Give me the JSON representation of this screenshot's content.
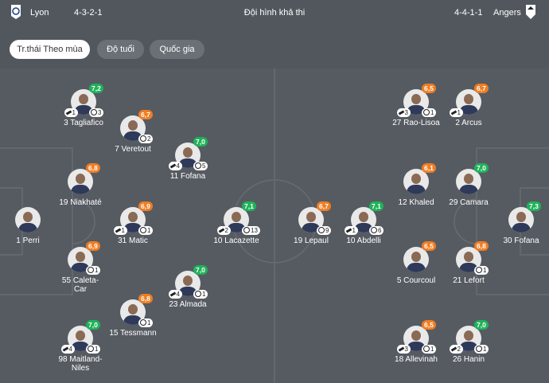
{
  "header": {
    "home_team": "Lyon",
    "home_formation": "4-3-2-1",
    "title": "Đội hình khả thi",
    "away_formation": "4-4-1-1",
    "away_team": "Angers"
  },
  "tabs": [
    "Tr.thái Theo mùa",
    "Độ tuổi",
    "Quốc gia"
  ],
  "players": {
    "home": [
      {
        "name": "3 Tagliafico",
        "rating": "7,2",
        "rating_color": "#1fb25a",
        "assists": 1,
        "goals": 3
      },
      {
        "name": "7 Veretout",
        "rating": "6,7",
        "rating_color": "#f07d22",
        "goals": 2
      },
      {
        "name": "11 Fofana",
        "rating": "7,0",
        "rating_color": "#1fb25a",
        "assists": 4,
        "goals": 5
      },
      {
        "name": "19 Niakhaté",
        "rating": "6,8",
        "rating_color": "#f07d22"
      },
      {
        "name": "1 Perri"
      },
      {
        "name": "31 Matic",
        "rating": "6,9",
        "rating_color": "#f07d22",
        "assists": 1,
        "goals": 1
      },
      {
        "name": "10 Lacazette",
        "rating": "7,1",
        "rating_color": "#1fb25a",
        "assists": 2,
        "goals": 13
      },
      {
        "name": "55 Caleta-Car",
        "rating": "6,9",
        "rating_color": "#f07d22",
        "goals": 1
      },
      {
        "name": "23 Almada",
        "rating": "7,0",
        "rating_color": "#1fb25a",
        "assists": 4,
        "goals": 1
      },
      {
        "name": "15 Tessmann",
        "rating": "6,8",
        "rating_color": "#f07d22",
        "goals": 1
      },
      {
        "name": "98 Maitland-Niles",
        "rating": "7,0",
        "rating_color": "#1fb25a",
        "assists": 4,
        "goals": 1
      }
    ],
    "away": [
      {
        "name": "27 Rao-Lisoa",
        "rating": "6,5",
        "rating_color": "#f07d22",
        "assists": 3,
        "goals": 1
      },
      {
        "name": "2 Arcus",
        "rating": "6,7",
        "rating_color": "#f07d22",
        "assists": 1
      },
      {
        "name": "12 Khaled",
        "rating": "6,1",
        "rating_color": "#f07d22"
      },
      {
        "name": "29 Camara",
        "rating": "7,0",
        "rating_color": "#1fb25a"
      },
      {
        "name": "19 Lepaul",
        "rating": "6,7",
        "rating_color": "#f07d22",
        "goals": 9
      },
      {
        "name": "10 Abdelli",
        "rating": "7,1",
        "rating_color": "#1fb25a",
        "assists": 1,
        "goals": 6
      },
      {
        "name": "30 Fofana",
        "rating": "7,3",
        "rating_color": "#1fb25a"
      },
      {
        "name": "5 Courcoul",
        "rating": "6,5",
        "rating_color": "#f07d22"
      },
      {
        "name": "21 Lefort",
        "rating": "6,8",
        "rating_color": "#f07d22",
        "goals": 1
      },
      {
        "name": "18 Allevinah",
        "rating": "6,5",
        "rating_color": "#f07d22",
        "assists": 3,
        "goals": 1
      },
      {
        "name": "26 Hanin",
        "rating": "7,0",
        "rating_color": "#1fb25a",
        "assists": 2,
        "goals": 1
      }
    ]
  }
}
